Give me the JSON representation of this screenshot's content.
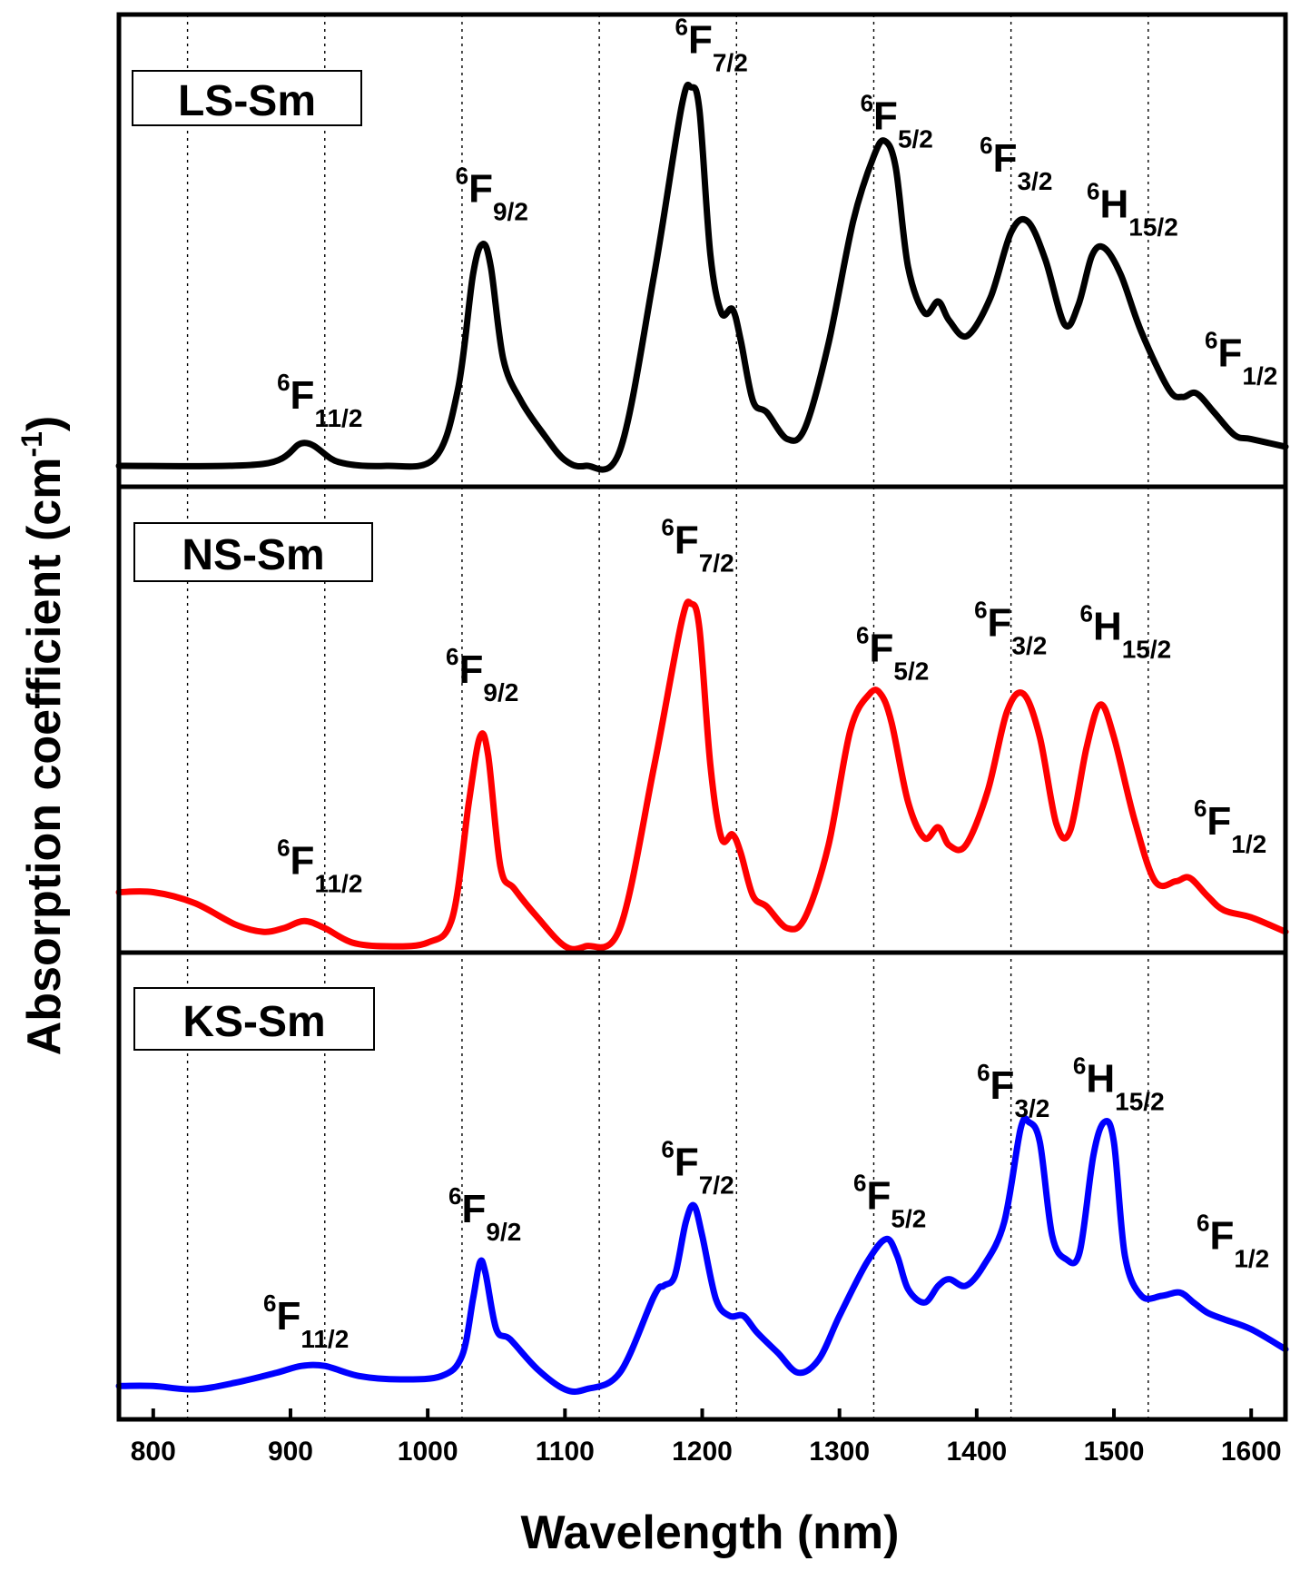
{
  "chart_data": {
    "type": "line",
    "title": "",
    "xlabel": "Wavelength (nm)",
    "ylabel": "Absorption coefficient (cm",
    "ylabel_superscript": "-1",
    "ylabel_close": ")",
    "xlim": [
      775,
      1625
    ],
    "x_ticks": [
      800,
      900,
      1000,
      1100,
      1200,
      1300,
      1400,
      1500,
      1600
    ],
    "x_tick_labels": [
      "800",
      "900",
      "1000",
      "1100",
      "1200",
      "1300",
      "1400",
      "1500",
      "1600"
    ],
    "gridlines_x": [
      825,
      925,
      1025,
      1125,
      1225,
      1325,
      1425,
      1525
    ],
    "panels": [
      {
        "name": "LS-Sm",
        "color": "#000000",
        "ylim": [
          0,
          100
        ],
        "x": [
          775,
          880,
          910,
          935,
          970,
          1005,
          1022,
          1033,
          1040,
          1046,
          1055,
          1068,
          1085,
          1100,
          1115,
          1140,
          1165,
          1185,
          1192,
          1198,
          1206,
          1214,
          1222,
          1228,
          1237,
          1247,
          1262,
          1275,
          1292,
          1310,
          1325,
          1333,
          1341,
          1350,
          1362,
          1372,
          1380,
          1393,
          1410,
          1425,
          1437,
          1450,
          1464,
          1474,
          1484,
          1493,
          1505,
          1520,
          1540,
          1550,
          1560,
          1573,
          1588,
          1600,
          1625
        ],
        "y": [
          0,
          0.5,
          6,
          1,
          0,
          2,
          20,
          50,
          58,
          52,
          28,
          17,
          8,
          1.5,
          0,
          4,
          50,
          94,
          99,
          93,
          55,
          40,
          41,
          33,
          17,
          14,
          7,
          10,
          32,
          64,
          81,
          85,
          78,
          52,
          40,
          43,
          38,
          34,
          44,
          61,
          64,
          54,
          37,
          42,
          55,
          57,
          50,
          35,
          20,
          18,
          19,
          14,
          8,
          7,
          5
        ],
        "annotations": [
          {
            "x": 910,
            "base": "F",
            "sup": "6",
            "sub": "11/2",
            "y": 15
          },
          {
            "x": 1040,
            "base": "F",
            "sup": "6",
            "sub": "9/2",
            "y": 69
          },
          {
            "x": 1200,
            "base": "F",
            "sup": "6",
            "sub": "7/2",
            "y": 108
          },
          {
            "x": 1335,
            "base": "F",
            "sup": "6",
            "sub": "5/2",
            "y": 88
          },
          {
            "x": 1422,
            "base": "F",
            "sup": "6",
            "sub": "3/2",
            "y": 77
          },
          {
            "x": 1500,
            "base": "H",
            "sup": "6",
            "sub": "15/2",
            "y": 65
          },
          {
            "x": 1586,
            "base": "F",
            "sup": "6",
            "sub": "1/2",
            "y": 26
          }
        ]
      },
      {
        "name": "NS-Sm",
        "color": "#ff0000",
        "ylim": [
          0,
          100
        ],
        "x": [
          775,
          800,
          830,
          860,
          880,
          895,
          910,
          925,
          945,
          970,
          1000,
          1018,
          1030,
          1038,
          1044,
          1053,
          1063,
          1080,
          1100,
          1115,
          1140,
          1165,
          1185,
          1192,
          1198,
          1206,
          1214,
          1222,
          1228,
          1237,
          1247,
          1262,
          1275,
          1292,
          1308,
          1322,
          1330,
          1338,
          1350,
          1362,
          1372,
          1380,
          1392,
          1408,
          1422,
          1434,
          1446,
          1458,
          1468,
          1480,
          1490,
          1500,
          1515,
          1530,
          1545,
          1555,
          1568,
          1580,
          1600,
          1625
        ],
        "y": [
          15,
          15,
          12,
          6,
          4,
          5,
          7,
          5,
          1,
          0,
          1,
          8,
          40,
          58,
          53,
          22,
          16,
          8,
          0,
          0,
          5,
          50,
          90,
          95,
          88,
          50,
          30,
          31,
          26,
          14,
          11,
          5,
          8,
          28,
          60,
          70,
          70,
          62,
          40,
          30,
          33,
          28,
          28,
          43,
          65,
          70,
          58,
          34,
          32,
          55,
          67,
          58,
          35,
          18,
          18,
          19,
          14,
          10,
          8,
          4
        ]
      },
      {
        "name": "KS-Sm",
        "color": "#0000ff",
        "ylim": [
          0,
          100
        ],
        "x": [
          775,
          800,
          830,
          860,
          890,
          908,
          925,
          950,
          980,
          1010,
          1025,
          1033,
          1038,
          1042,
          1050,
          1060,
          1080,
          1100,
          1115,
          1140,
          1165,
          1172,
          1180,
          1188,
          1194,
          1200,
          1210,
          1220,
          1230,
          1240,
          1255,
          1270,
          1285,
          1300,
          1320,
          1334,
          1342,
          1350,
          1362,
          1372,
          1380,
          1392,
          1405,
          1420,
          1432,
          1438,
          1446,
          1455,
          1465,
          1475,
          1485,
          1493,
          1500,
          1508,
          1520,
          1535,
          1548,
          1558,
          1568,
          1580,
          1600,
          1625
        ],
        "y": [
          1,
          1,
          0,
          2,
          5,
          7,
          7,
          4,
          3,
          4,
          10,
          27,
          38,
          35,
          18,
          15,
          6,
          0,
          0,
          5,
          28,
          31,
          34,
          50,
          55,
          46,
          27,
          22,
          22,
          17,
          11,
          5,
          9,
          22,
          38,
          45,
          40,
          30,
          26,
          31,
          33,
          31,
          37,
          50,
          78,
          80,
          74,
          46,
          39,
          41,
          70,
          80,
          74,
          40,
          28,
          28,
          29,
          26,
          23,
          21,
          18,
          12
        ],
        "annotations": [
          {
            "x": 900,
            "base": "F",
            "sup": "6",
            "sub": "11/2",
            "y": 18
          },
          {
            "x": 1035,
            "base": "F",
            "sup": "6",
            "sub": "9/2",
            "y": 50
          },
          {
            "x": 1190,
            "base": "F",
            "sup": "6",
            "sub": "7/2",
            "y": 64
          },
          {
            "x": 1330,
            "base": "F",
            "sup": "6",
            "sub": "5/2",
            "y": 54
          },
          {
            "x": 1420,
            "base": "F",
            "sup": "6",
            "sub": "3/2",
            "y": 87
          },
          {
            "x": 1490,
            "base": "H",
            "sup": "6",
            "sub": "15/2",
            "y": 89
          },
          {
            "x": 1580,
            "base": "F",
            "sup": "6",
            "sub": "1/2",
            "y": 42
          }
        ]
      }
    ]
  }
}
